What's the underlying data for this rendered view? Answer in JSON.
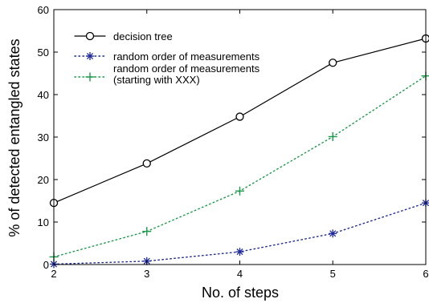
{
  "chart_data": {
    "type": "line",
    "title": "",
    "xlabel": "No. of steps",
    "ylabel": "% of detected entangled states",
    "x": [
      2,
      3,
      4,
      5,
      6
    ],
    "xlim": [
      2,
      6
    ],
    "ylim": [
      0,
      60
    ],
    "xticks": [
      "2",
      "3",
      "4",
      "5",
      "6"
    ],
    "yticks": [
      "0",
      "10",
      "20",
      "30",
      "40",
      "50",
      "60"
    ],
    "grid": false,
    "legend_position": "top-left",
    "series": [
      {
        "name": "decision tree",
        "values": [
          14.5,
          23.8,
          34.8,
          47.5,
          53.2
        ],
        "color": "#000000",
        "line_style": "solid",
        "marker": "circle"
      },
      {
        "name": "random order of measurements",
        "values": [
          0.1,
          0.8,
          3.0,
          7.3,
          14.5
        ],
        "color": "#1f2a9c",
        "line_style": "dotted",
        "marker": "asterisk"
      },
      {
        "name": "random order of measurements (starting with XXX)",
        "name_lines": [
          "random order of measurements",
          "(starting with XXX)"
        ],
        "values": [
          1.8,
          7.8,
          17.3,
          30.1,
          44.4
        ],
        "color": "#1a9a4a",
        "line_style": "dotted",
        "marker": "plus"
      }
    ]
  }
}
